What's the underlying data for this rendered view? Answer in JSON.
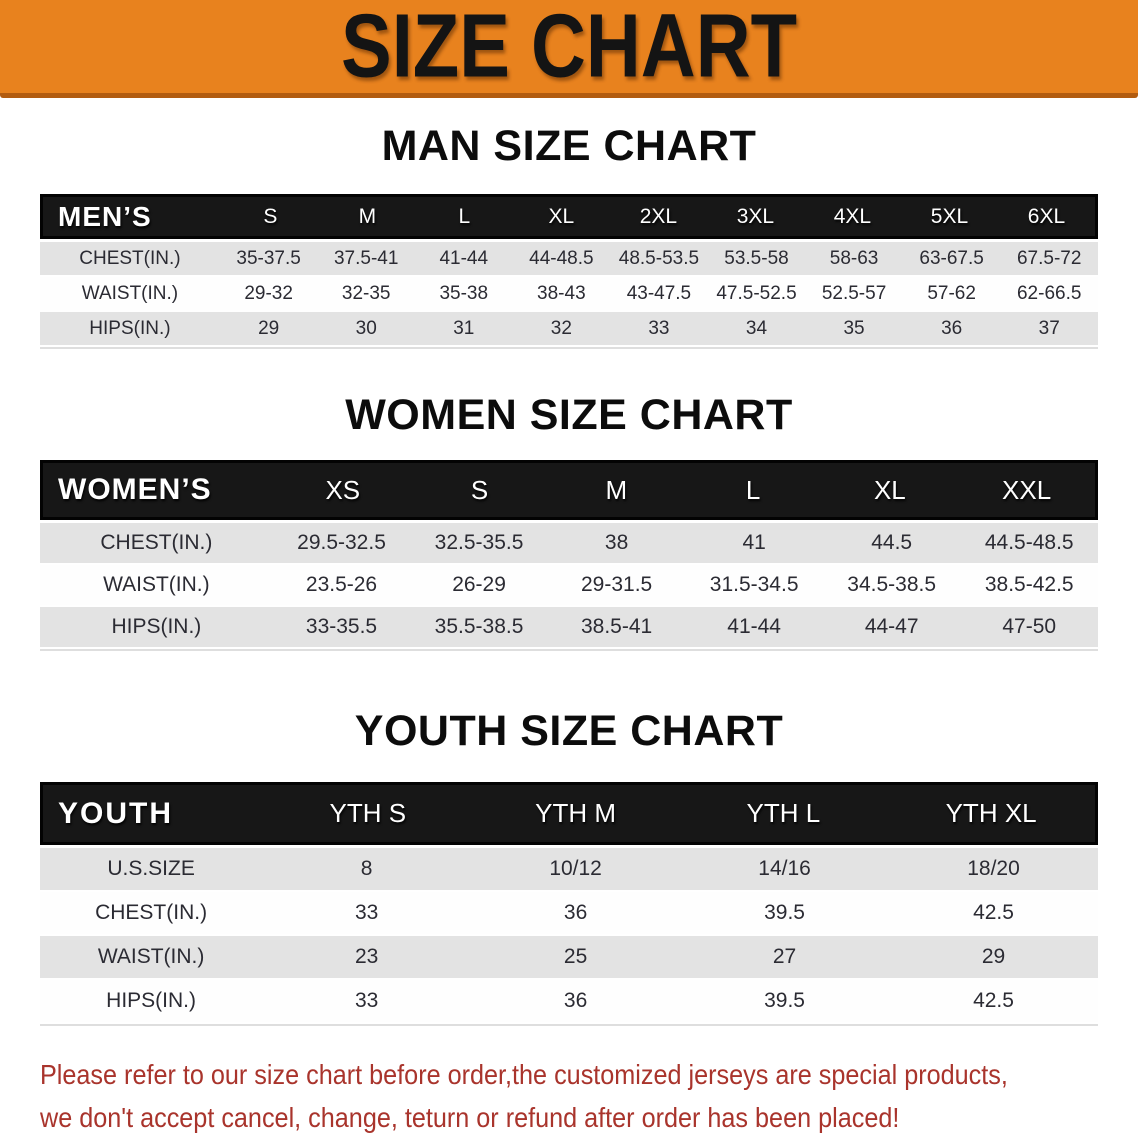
{
  "banner": {
    "title": "SIZE CHART"
  },
  "colors": {
    "banner_bg": "#e8821e",
    "banner_border": "#b25c10",
    "header_bg": "#171717",
    "row_gray": "#e3e3e3",
    "disclaimer_red": "#a9342c"
  },
  "tables": [
    {
      "id": "men",
      "title": "MAN SIZE CHART",
      "header_label": "MEN’S",
      "columns": [
        "S",
        "M",
        "L",
        "XL",
        "2XL",
        "3XL",
        "4XL",
        "5XL",
        "6XL"
      ],
      "rows": [
        {
          "label": "CHEST(IN.)",
          "values": [
            "35-37.5",
            "37.5-41",
            "41-44",
            "44-48.5",
            "48.5-53.5",
            "53.5-58",
            "58-63",
            "63-67.5",
            "67.5-72"
          ]
        },
        {
          "label": "WAIST(IN.)",
          "values": [
            "29-32",
            "32-35",
            "35-38",
            "38-43",
            "43-47.5",
            "47.5-52.5",
            "52.5-57",
            "57-62",
            "62-66.5"
          ]
        },
        {
          "label": "HIPS(IN.)",
          "values": [
            "29",
            "30",
            "31",
            "32",
            "33",
            "34",
            "35",
            "36",
            "37"
          ]
        }
      ]
    },
    {
      "id": "women",
      "title": "WOMEN SIZE CHART",
      "header_label": "WOMEN’S",
      "columns": [
        "XS",
        "S",
        "M",
        "L",
        "XL",
        "XXL"
      ],
      "rows": [
        {
          "label": "CHEST(IN.)",
          "values": [
            "29.5-32.5",
            "32.5-35.5",
            "38",
            "41",
            "44.5",
            "44.5-48.5"
          ]
        },
        {
          "label": "WAIST(IN.)",
          "values": [
            "23.5-26",
            "26-29",
            "29-31.5",
            "31.5-34.5",
            "34.5-38.5",
            "38.5-42.5"
          ]
        },
        {
          "label": "HIPS(IN.)",
          "values": [
            "33-35.5",
            "35.5-38.5",
            "38.5-41",
            "41-44",
            "44-47",
            "47-50"
          ]
        }
      ]
    },
    {
      "id": "youth",
      "title": "YOUTH SIZE CHART",
      "header_label": "YOUTH",
      "columns": [
        "YTH S",
        "YTH M",
        "YTH L",
        "YTH XL"
      ],
      "rows": [
        {
          "label": "U.S.SIZE",
          "values": [
            "8",
            "10/12",
            "14/16",
            "18/20"
          ]
        },
        {
          "label": "CHEST(IN.)",
          "values": [
            "33",
            "36",
            "39.5",
            "42.5"
          ]
        },
        {
          "label": "WAIST(IN.)",
          "values": [
            "23",
            "25",
            "27",
            "29"
          ]
        },
        {
          "label": "HIPS(IN.)",
          "values": [
            "33",
            "36",
            "39.5",
            "42.5"
          ]
        }
      ]
    }
  ],
  "disclaimer": {
    "line1": "Please refer to our size chart before order,the customized jerseys are special products,",
    "line2": "we don't accept cancel, change, teturn or refund after order has been placed!"
  }
}
